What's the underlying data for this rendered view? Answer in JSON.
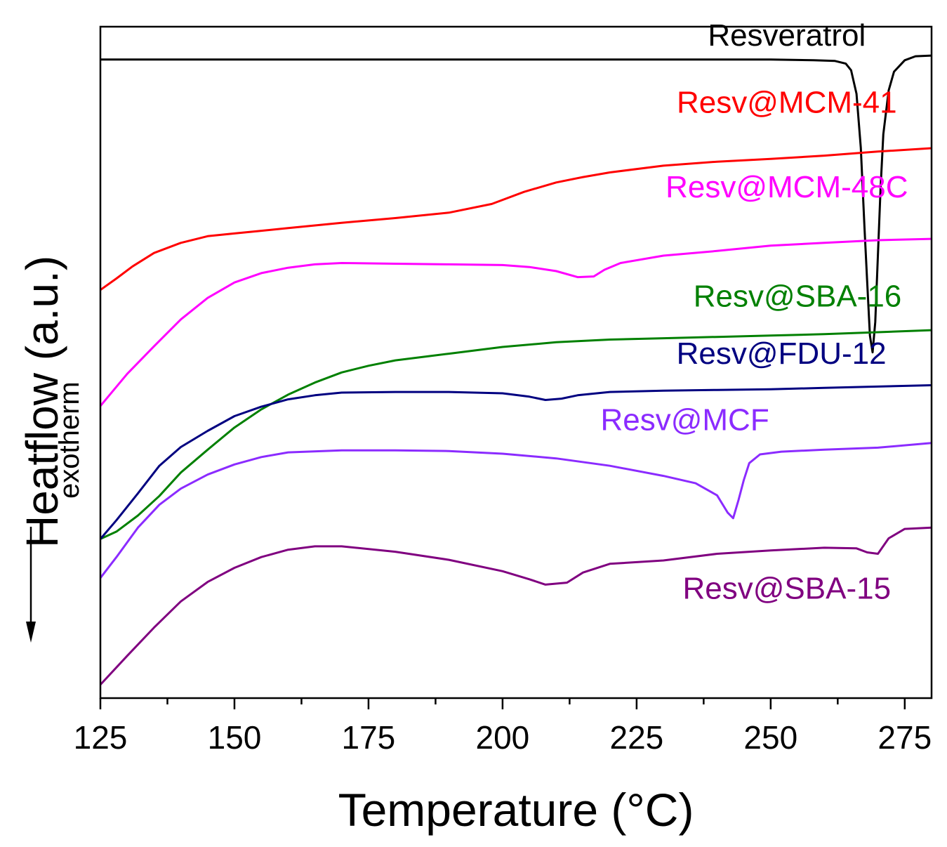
{
  "chart_data": {
    "type": "line",
    "title": "",
    "xlabel": "Temperature (°C)",
    "ylabel": "Heatflow (a.u.)",
    "ylabel_sub": "exotherm",
    "xlim": [
      125,
      280
    ],
    "ylim": [
      0,
      100
    ],
    "yticks_shown": false,
    "grid": false,
    "x_ticks": [
      125,
      150,
      175,
      200,
      225,
      250,
      275
    ],
    "x_tick_labels": [
      "125",
      "150",
      "175",
      "200",
      "225",
      "250",
      "275"
    ],
    "series": [
      {
        "name": "Resveratrol",
        "color": "#000000",
        "label_x": 253,
        "label_y": 97.2,
        "points": [
          [
            125,
            95.1
          ],
          [
            200,
            95.1
          ],
          [
            250,
            95.1
          ],
          [
            258,
            95.0
          ],
          [
            262,
            94.9
          ],
          [
            264,
            94.5
          ],
          [
            265,
            93.5
          ],
          [
            266,
            90
          ],
          [
            266.8,
            82
          ],
          [
            267.5,
            70
          ],
          [
            268,
            62
          ],
          [
            268.5,
            54
          ],
          [
            269,
            51.5
          ],
          [
            269.5,
            56
          ],
          [
            270,
            66
          ],
          [
            270.5,
            76
          ],
          [
            271,
            84
          ],
          [
            272,
            90.5
          ],
          [
            273,
            93.3
          ],
          [
            275,
            95.0
          ],
          [
            277,
            95.6
          ],
          [
            280,
            95.7
          ]
        ]
      },
      {
        "name": "Resv@MCM-41",
        "color": "#ff0000",
        "label_x": 253,
        "label_y": 87.2,
        "points": [
          [
            125,
            60.8
          ],
          [
            128,
            62.5
          ],
          [
            131,
            64.3
          ],
          [
            135,
            66.3
          ],
          [
            140,
            67.8
          ],
          [
            145,
            68.8
          ],
          [
            150,
            69.2
          ],
          [
            155,
            69.6
          ],
          [
            160,
            70.0
          ],
          [
            170,
            70.8
          ],
          [
            180,
            71.5
          ],
          [
            190,
            72.3
          ],
          [
            198,
            73.6
          ],
          [
            204,
            75.4
          ],
          [
            210,
            76.8
          ],
          [
            215,
            77.6
          ],
          [
            220,
            78.3
          ],
          [
            230,
            79.3
          ],
          [
            240,
            79.9
          ],
          [
            250,
            80.3
          ],
          [
            260,
            80.8
          ],
          [
            270,
            81.4
          ],
          [
            280,
            81.9
          ]
        ]
      },
      {
        "name": "Resv@MCM-48C",
        "color": "#ff00ff",
        "label_x": 253,
        "label_y": 74.6,
        "points": [
          [
            125,
            43.5
          ],
          [
            130,
            48.3
          ],
          [
            135,
            52.4
          ],
          [
            140,
            56.4
          ],
          [
            145,
            59.6
          ],
          [
            150,
            61.9
          ],
          [
            155,
            63.3
          ],
          [
            160,
            64.1
          ],
          [
            165,
            64.6
          ],
          [
            170,
            64.8
          ],
          [
            180,
            64.7
          ],
          [
            190,
            64.6
          ],
          [
            200,
            64.5
          ],
          [
            205,
            64.2
          ],
          [
            210,
            63.6
          ],
          [
            214,
            62.7
          ],
          [
            217,
            62.8
          ],
          [
            219,
            63.8
          ],
          [
            222,
            64.8
          ],
          [
            230,
            65.9
          ],
          [
            240,
            66.6
          ],
          [
            250,
            67.4
          ],
          [
            260,
            67.8
          ],
          [
            270,
            68.2
          ],
          [
            280,
            68.4
          ]
        ]
      },
      {
        "name": "Resv@SBA-16",
        "color": "#008000",
        "label_x": 255,
        "label_y": 58.3,
        "points": [
          [
            125,
            23.7
          ],
          [
            128,
            24.8
          ],
          [
            132,
            27.2
          ],
          [
            136,
            30.1
          ],
          [
            140,
            33.6
          ],
          [
            145,
            37.0
          ],
          [
            150,
            40.3
          ],
          [
            155,
            43.0
          ],
          [
            160,
            45.2
          ],
          [
            165,
            47.0
          ],
          [
            170,
            48.5
          ],
          [
            175,
            49.5
          ],
          [
            180,
            50.3
          ],
          [
            190,
            51.3
          ],
          [
            200,
            52.3
          ],
          [
            210,
            53.0
          ],
          [
            220,
            53.4
          ],
          [
            230,
            53.6
          ],
          [
            240,
            53.8
          ],
          [
            250,
            54.0
          ],
          [
            260,
            54.2
          ],
          [
            270,
            54.5
          ],
          [
            280,
            54.8
          ]
        ]
      },
      {
        "name": "Resv@FDU-12",
        "color": "#000080",
        "label_x": 252,
        "label_y": 49.8,
        "points": [
          [
            125,
            23.7
          ],
          [
            128,
            26.5
          ],
          [
            132,
            30.5
          ],
          [
            136,
            34.6
          ],
          [
            140,
            37.4
          ],
          [
            145,
            39.8
          ],
          [
            150,
            42.0
          ],
          [
            155,
            43.4
          ],
          [
            160,
            44.5
          ],
          [
            165,
            45.1
          ],
          [
            170,
            45.5
          ],
          [
            180,
            45.6
          ],
          [
            190,
            45.6
          ],
          [
            200,
            45.4
          ],
          [
            205,
            44.9
          ],
          [
            208,
            44.4
          ],
          [
            211,
            44.6
          ],
          [
            214,
            45.1
          ],
          [
            220,
            45.6
          ],
          [
            230,
            45.8
          ],
          [
            240,
            45.9
          ],
          [
            250,
            46.0
          ],
          [
            260,
            46.2
          ],
          [
            270,
            46.4
          ],
          [
            280,
            46.6
          ]
        ]
      },
      {
        "name": "Resv@MCF",
        "color": "#8b2bff",
        "label_x": 234,
        "label_y": 39.9,
        "points": [
          [
            125,
            17.9
          ],
          [
            128,
            21.0
          ],
          [
            132,
            25.4
          ],
          [
            136,
            28.8
          ],
          [
            140,
            31.2
          ],
          [
            145,
            33.3
          ],
          [
            150,
            34.8
          ],
          [
            155,
            35.9
          ],
          [
            160,
            36.6
          ],
          [
            170,
            36.9
          ],
          [
            180,
            36.9
          ],
          [
            190,
            36.8
          ],
          [
            200,
            36.4
          ],
          [
            210,
            35.7
          ],
          [
            220,
            34.6
          ],
          [
            230,
            33.1
          ],
          [
            236,
            32.0
          ],
          [
            240,
            30.2
          ],
          [
            242,
            27.6
          ],
          [
            243,
            26.8
          ],
          [
            244,
            29.5
          ],
          [
            245,
            32.5
          ],
          [
            246,
            35.0
          ],
          [
            248,
            36.3
          ],
          [
            252,
            36.7
          ],
          [
            260,
            37.0
          ],
          [
            270,
            37.3
          ],
          [
            280,
            38.0
          ]
        ]
      },
      {
        "name": "Resv@SBA-15",
        "color": "#800080",
        "label_x": 253,
        "label_y": 14.8,
        "points": [
          [
            125,
            2.0
          ],
          [
            130,
            6.3
          ],
          [
            135,
            10.5
          ],
          [
            140,
            14.4
          ],
          [
            145,
            17.3
          ],
          [
            150,
            19.4
          ],
          [
            155,
            21.0
          ],
          [
            160,
            22.1
          ],
          [
            165,
            22.6
          ],
          [
            170,
            22.6
          ],
          [
            180,
            21.8
          ],
          [
            190,
            20.6
          ],
          [
            200,
            18.9
          ],
          [
            205,
            17.7
          ],
          [
            208,
            16.9
          ],
          [
            212,
            17.2
          ],
          [
            215,
            18.7
          ],
          [
            220,
            20.0
          ],
          [
            230,
            20.5
          ],
          [
            240,
            21.5
          ],
          [
            250,
            22.0
          ],
          [
            260,
            22.4
          ],
          [
            266,
            22.3
          ],
          [
            268,
            21.7
          ],
          [
            270,
            21.5
          ],
          [
            272,
            23.8
          ],
          [
            275,
            25.2
          ],
          [
            280,
            25.4
          ]
        ]
      }
    ]
  }
}
